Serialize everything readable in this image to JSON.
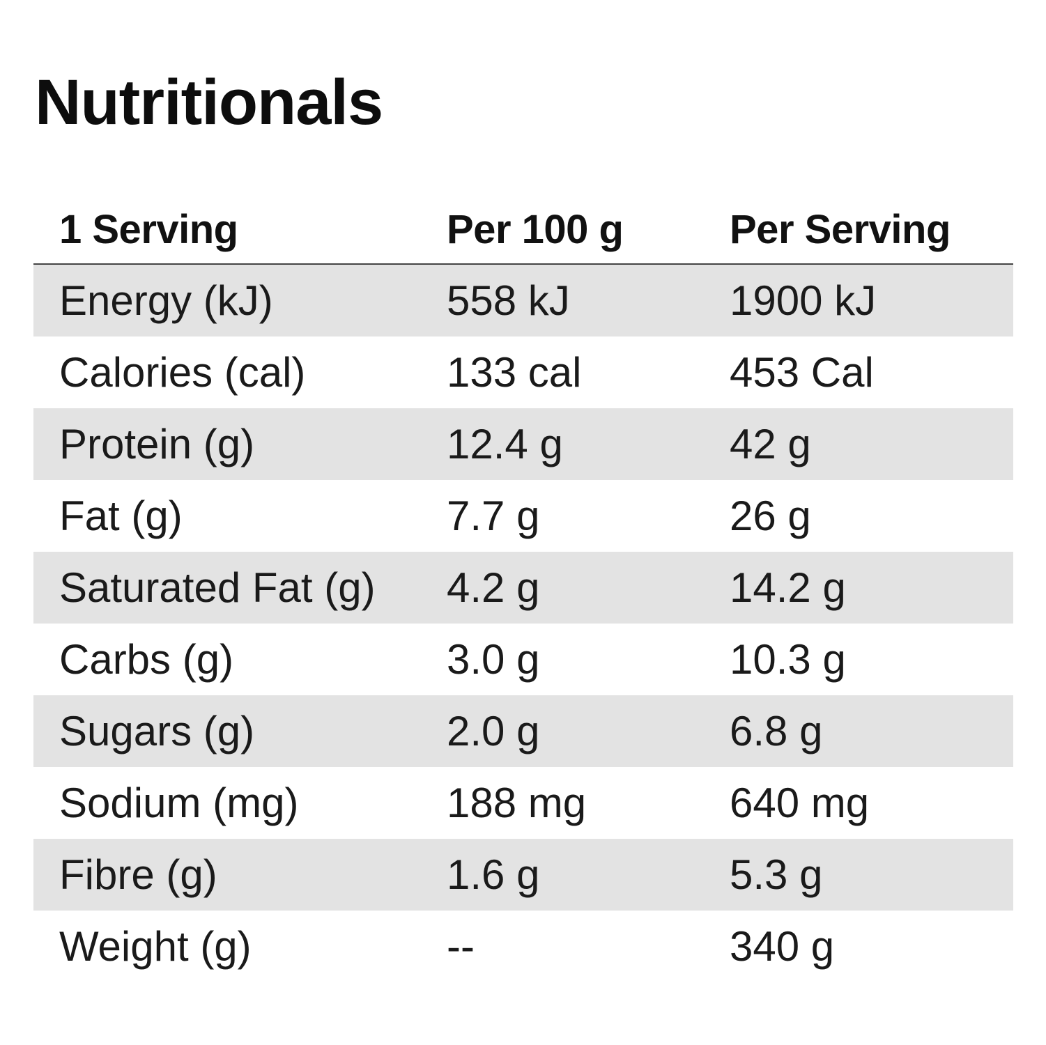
{
  "title": "Nutritionals",
  "table": {
    "headers": [
      "1 Serving",
      "Per 100 g",
      "Per Serving"
    ],
    "rows": [
      {
        "label": "Energy (kJ)",
        "per100": "558 kJ",
        "perServing": "1900 kJ"
      },
      {
        "label": "Calories (cal)",
        "per100": "133 cal",
        "perServing": "453 Cal"
      },
      {
        "label": "Protein (g)",
        "per100": "12.4 g",
        "perServing": "42 g"
      },
      {
        "label": "Fat (g)",
        "per100": "7.7 g",
        "perServing": "26 g"
      },
      {
        "label": "Saturated Fat (g)",
        "per100": "4.2 g",
        "perServing": "14.2 g"
      },
      {
        "label": "Carbs (g)",
        "per100": "3.0 g",
        "perServing": "10.3 g"
      },
      {
        "label": "Sugars (g)",
        "per100": "2.0 g",
        "perServing": "6.8 g"
      },
      {
        "label": "Sodium (mg)",
        "per100": "188 mg",
        "perServing": "640 mg"
      },
      {
        "label": "Fibre (g)",
        "per100": "1.6 g",
        "perServing": "5.3 g"
      },
      {
        "label": "Weight (g)",
        "per100": "--",
        "perServing": "340 g"
      }
    ]
  }
}
